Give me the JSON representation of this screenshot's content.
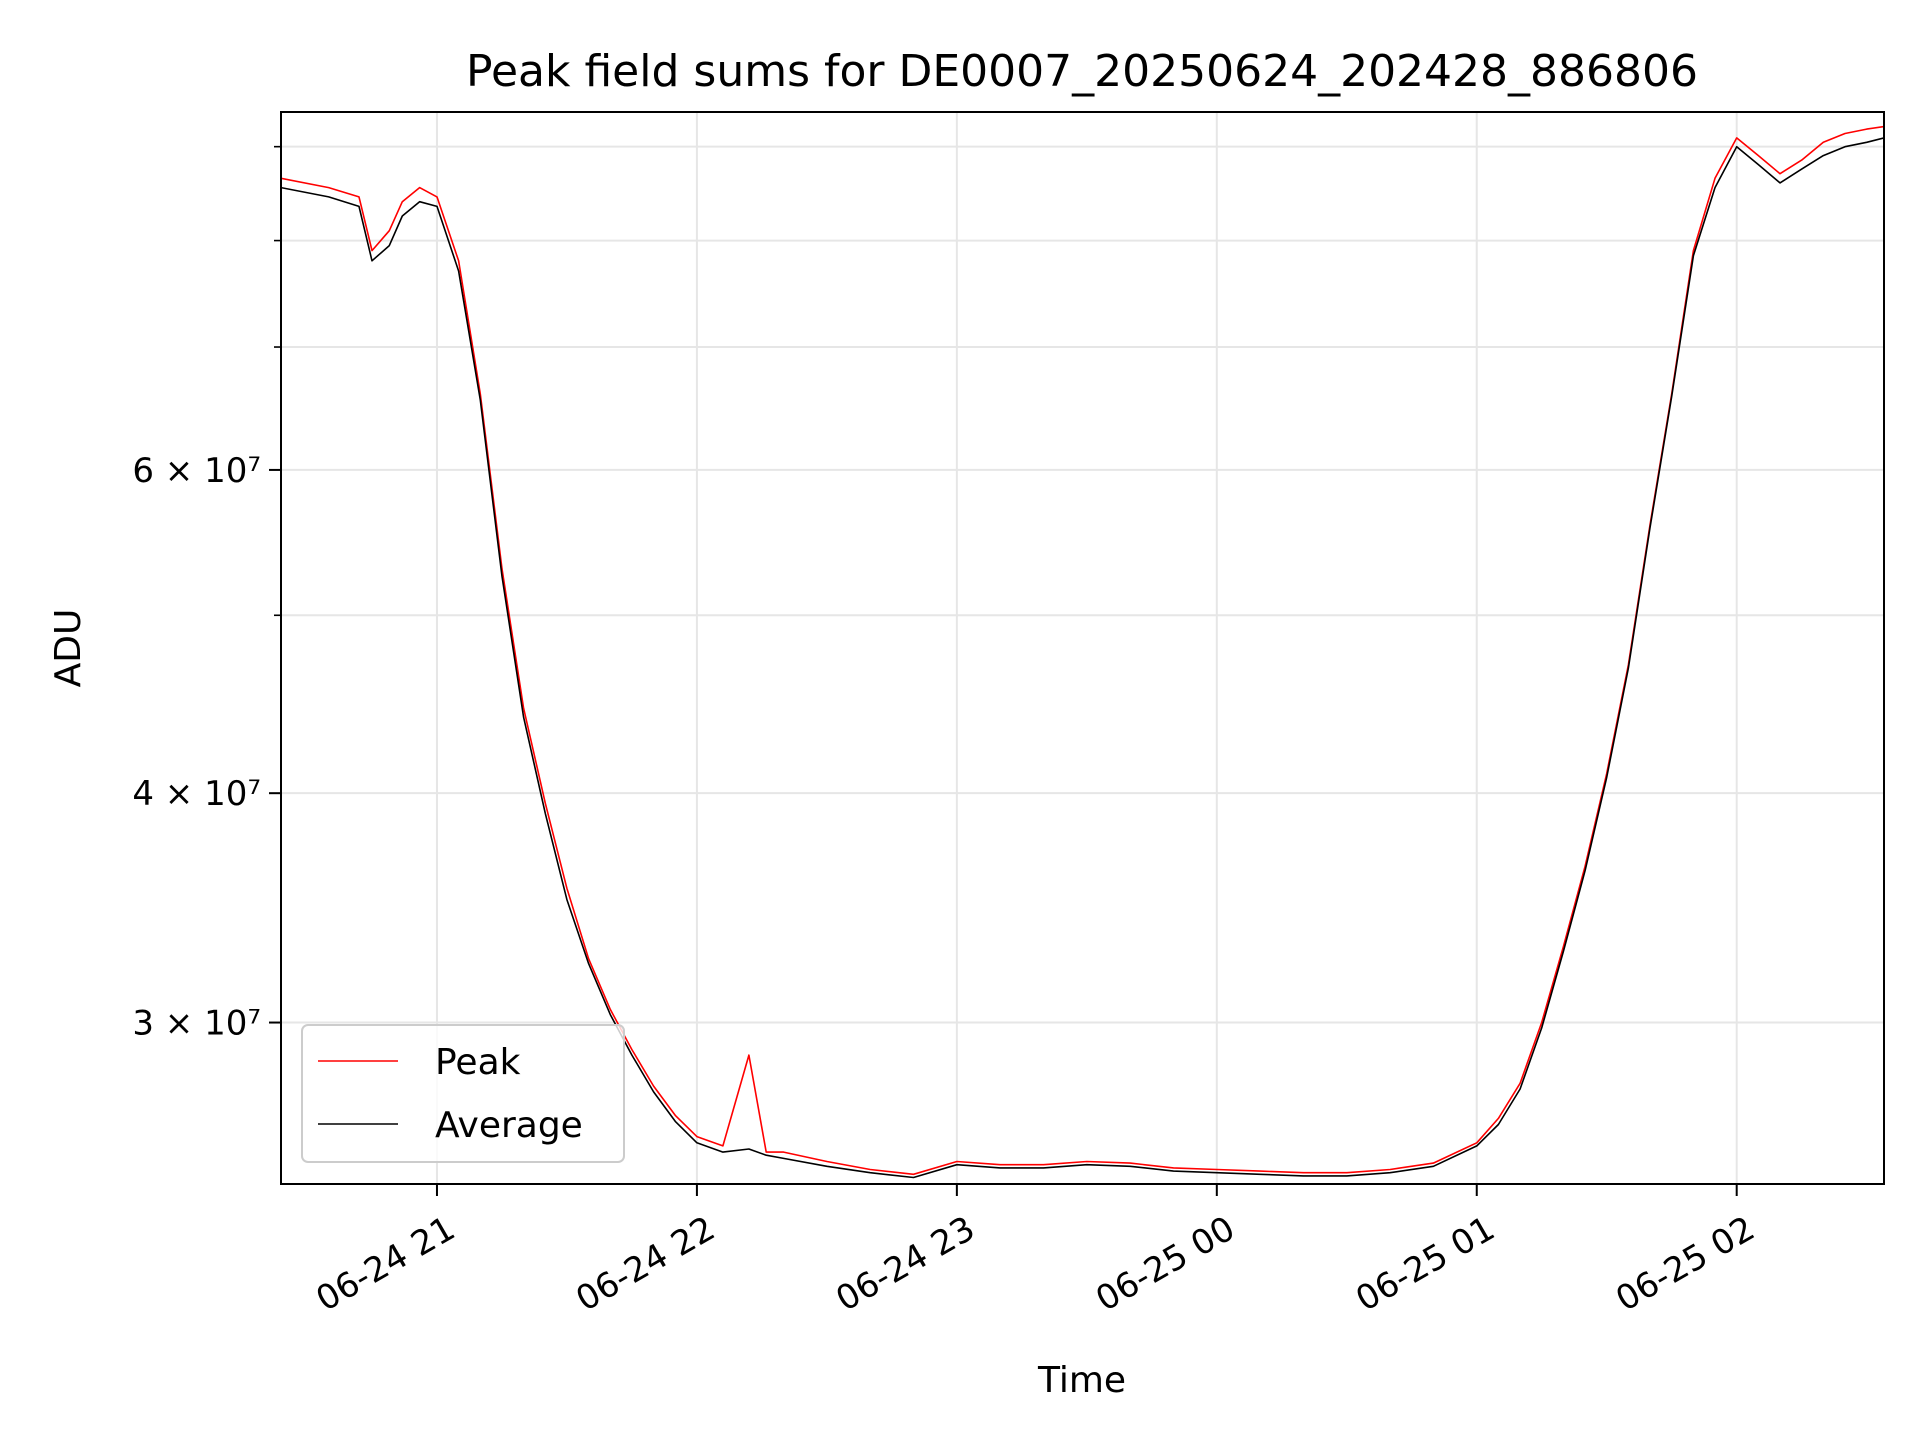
{
  "chart_data": {
    "type": "line",
    "title": "Peak field sums for DE0007_20250624_202428_886806",
    "xlabel": "Time",
    "ylabel": "ADU",
    "x_axis_type": "time",
    "y_scale": "log",
    "xlim": [
      "2025-06-24 20:24",
      "2025-06-25 02:34"
    ],
    "ylim": [
      24500000,
      94000000
    ],
    "x_ticks": [
      {
        "value": "2025-06-24 21:00",
        "label": "06-24 21"
      },
      {
        "value": "2025-06-24 22:00",
        "label": "06-24 22"
      },
      {
        "value": "2025-06-24 23:00",
        "label": "06-24 23"
      },
      {
        "value": "2025-06-25 00:00",
        "label": "06-25 00"
      },
      {
        "value": "2025-06-25 01:00",
        "label": "06-25 01"
      },
      {
        "value": "2025-06-25 02:00",
        "label": "06-25 02"
      }
    ],
    "y_ticks": [
      {
        "value": 30000000,
        "label": "3 × 10⁷"
      },
      {
        "value": 40000000,
        "label": "4 × 10⁷"
      },
      {
        "value": 60000000,
        "label": "6 × 10⁷"
      }
    ],
    "y_minor_ticks": [
      50000000,
      70000000,
      80000000,
      90000000
    ],
    "grid": true,
    "legend_position": "lower-left",
    "series": [
      {
        "name": "Peak",
        "color": "#ff0000",
        "x": [
          "2025-06-24 20:24",
          "2025-06-24 20:35",
          "2025-06-24 20:42",
          "2025-06-24 20:45",
          "2025-06-24 20:49",
          "2025-06-24 20:52",
          "2025-06-24 20:56",
          "2025-06-24 21:00",
          "2025-06-24 21:05",
          "2025-06-24 21:10",
          "2025-06-24 21:15",
          "2025-06-24 21:20",
          "2025-06-24 21:25",
          "2025-06-24 21:30",
          "2025-06-24 21:35",
          "2025-06-24 21:40",
          "2025-06-24 21:45",
          "2025-06-24 21:50",
          "2025-06-24 21:55",
          "2025-06-24 22:00",
          "2025-06-24 22:06",
          "2025-06-24 22:12",
          "2025-06-24 22:16",
          "2025-06-24 22:20",
          "2025-06-24 22:30",
          "2025-06-24 22:40",
          "2025-06-24 22:50",
          "2025-06-24 23:00",
          "2025-06-24 23:10",
          "2025-06-24 23:20",
          "2025-06-24 23:30",
          "2025-06-24 23:40",
          "2025-06-24 23:50",
          "2025-06-25 00:00",
          "2025-06-25 00:10",
          "2025-06-25 00:20",
          "2025-06-25 00:30",
          "2025-06-25 00:40",
          "2025-06-25 00:50",
          "2025-06-25 01:00",
          "2025-06-25 01:05",
          "2025-06-25 01:10",
          "2025-06-25 01:15",
          "2025-06-25 01:20",
          "2025-06-25 01:25",
          "2025-06-25 01:30",
          "2025-06-25 01:35",
          "2025-06-25 01:40",
          "2025-06-25 01:45",
          "2025-06-25 01:50",
          "2025-06-25 01:55",
          "2025-06-25 02:00",
          "2025-06-25 02:05",
          "2025-06-25 02:10",
          "2025-06-25 02:15",
          "2025-06-25 02:20",
          "2025-06-25 02:25",
          "2025-06-25 02:30",
          "2025-06-25 02:34"
        ],
        "y": [
          86500000,
          85500000,
          84500000,
          79000000,
          81000000,
          84000000,
          85500000,
          84500000,
          78000000,
          66000000,
          53000000,
          44500000,
          39500000,
          35500000,
          32500000,
          30500000,
          29000000,
          27700000,
          26700000,
          26000000,
          25700000,
          28800000,
          25500000,
          25500000,
          25200000,
          24950000,
          24800000,
          25200000,
          25100000,
          25100000,
          25200000,
          25150000,
          25000000,
          24950000,
          24900000,
          24850000,
          24850000,
          24950000,
          25150000,
          25800000,
          26600000,
          27800000,
          30000000,
          33000000,
          36500000,
          41000000,
          47000000,
          56000000,
          66000000,
          79000000,
          86500000,
          91000000,
          89000000,
          87000000,
          88500000,
          90500000,
          91500000,
          92000000,
          92300000
        ]
      },
      {
        "name": "Average",
        "color": "#000000",
        "x": [
          "2025-06-24 20:24",
          "2025-06-24 20:35",
          "2025-06-24 20:42",
          "2025-06-24 20:45",
          "2025-06-24 20:49",
          "2025-06-24 20:52",
          "2025-06-24 20:56",
          "2025-06-24 21:00",
          "2025-06-24 21:05",
          "2025-06-24 21:10",
          "2025-06-24 21:15",
          "2025-06-24 21:20",
          "2025-06-24 21:25",
          "2025-06-24 21:30",
          "2025-06-24 21:35",
          "2025-06-24 21:40",
          "2025-06-24 21:45",
          "2025-06-24 21:50",
          "2025-06-24 21:55",
          "2025-06-24 22:00",
          "2025-06-24 22:06",
          "2025-06-24 22:12",
          "2025-06-24 22:16",
          "2025-06-24 22:20",
          "2025-06-24 22:30",
          "2025-06-24 22:40",
          "2025-06-24 22:50",
          "2025-06-24 23:00",
          "2025-06-24 23:10",
          "2025-06-24 23:20",
          "2025-06-24 23:30",
          "2025-06-24 23:40",
          "2025-06-24 23:50",
          "2025-06-25 00:00",
          "2025-06-25 00:10",
          "2025-06-25 00:20",
          "2025-06-25 00:30",
          "2025-06-25 00:40",
          "2025-06-25 00:50",
          "2025-06-25 01:00",
          "2025-06-25 01:05",
          "2025-06-25 01:10",
          "2025-06-25 01:15",
          "2025-06-25 01:20",
          "2025-06-25 01:25",
          "2025-06-25 01:30",
          "2025-06-25 01:35",
          "2025-06-25 01:40",
          "2025-06-25 01:45",
          "2025-06-25 01:50",
          "2025-06-25 01:55",
          "2025-06-25 02:00",
          "2025-06-25 02:05",
          "2025-06-25 02:10",
          "2025-06-25 02:15",
          "2025-06-25 02:20",
          "2025-06-25 02:25",
          "2025-06-25 02:30",
          "2025-06-25 02:34"
        ],
        "y": [
          85500000,
          84500000,
          83500000,
          78000000,
          79500000,
          82500000,
          84000000,
          83500000,
          77000000,
          65500000,
          52500000,
          44000000,
          39000000,
          35000000,
          32300000,
          30300000,
          28800000,
          27500000,
          26500000,
          25800000,
          25500000,
          25600000,
          25400000,
          25300000,
          25050000,
          24850000,
          24700000,
          25100000,
          25000000,
          25000000,
          25100000,
          25050000,
          24900000,
          24850000,
          24800000,
          24750000,
          24750000,
          24850000,
          25050000,
          25700000,
          26400000,
          27600000,
          29800000,
          32800000,
          36300000,
          40800000,
          46800000,
          55800000,
          65800000,
          78500000,
          85500000,
          90000000,
          88000000,
          86000000,
          87500000,
          89000000,
          90000000,
          90500000,
          91000000
        ]
      }
    ]
  }
}
